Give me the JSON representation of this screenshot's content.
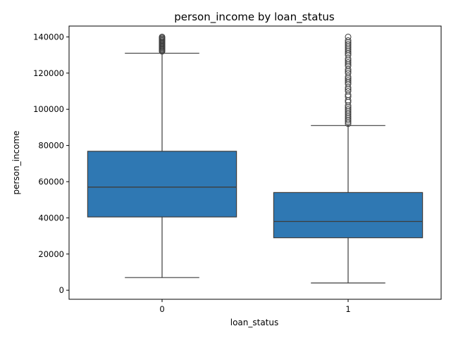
{
  "chart_data": {
    "type": "box",
    "title": "person_income by loan_status",
    "xlabel": "loan_status",
    "ylabel": "person_income",
    "categories": [
      "0",
      "1"
    ],
    "ylim": [
      -5000,
      146000
    ],
    "yticks": [
      0,
      20000,
      40000,
      60000,
      80000,
      100000,
      120000,
      140000
    ],
    "ytick_labels": [
      "0",
      "20000",
      "40000",
      "60000",
      "80000",
      "100000",
      "120000",
      "140000"
    ],
    "grid": false,
    "box_color": "#2f78b3",
    "line_color": "#3d3d3d",
    "boxes": [
      {
        "category": "0",
        "whisker_low": 7000,
        "q1": 40500,
        "median": 57000,
        "q3": 76800,
        "whisker_high": 131000,
        "outliers": [
          132000,
          132500,
          133000,
          133500,
          134000,
          134500,
          135000,
          135500,
          136000,
          136500,
          137000,
          137500,
          138000,
          138500,
          139000,
          139500,
          140000
        ]
      },
      {
        "category": "1",
        "whisker_low": 4000,
        "q1": 29000,
        "median": 38000,
        "q3": 54000,
        "whisker_high": 91000,
        "outliers": [
          92000,
          93000,
          94000,
          95000,
          96000,
          97000,
          98000,
          99000,
          100000,
          101000,
          102000,
          104000,
          105000,
          107000,
          108000,
          110000,
          111000,
          112000,
          114000,
          115000,
          116000,
          117000,
          118000,
          120000,
          121000,
          122000,
          124000,
          125000,
          126000,
          127000,
          128000,
          130000,
          131000,
          132000,
          133000,
          134000,
          135000,
          136000,
          137000,
          138000,
          140000
        ]
      }
    ]
  }
}
